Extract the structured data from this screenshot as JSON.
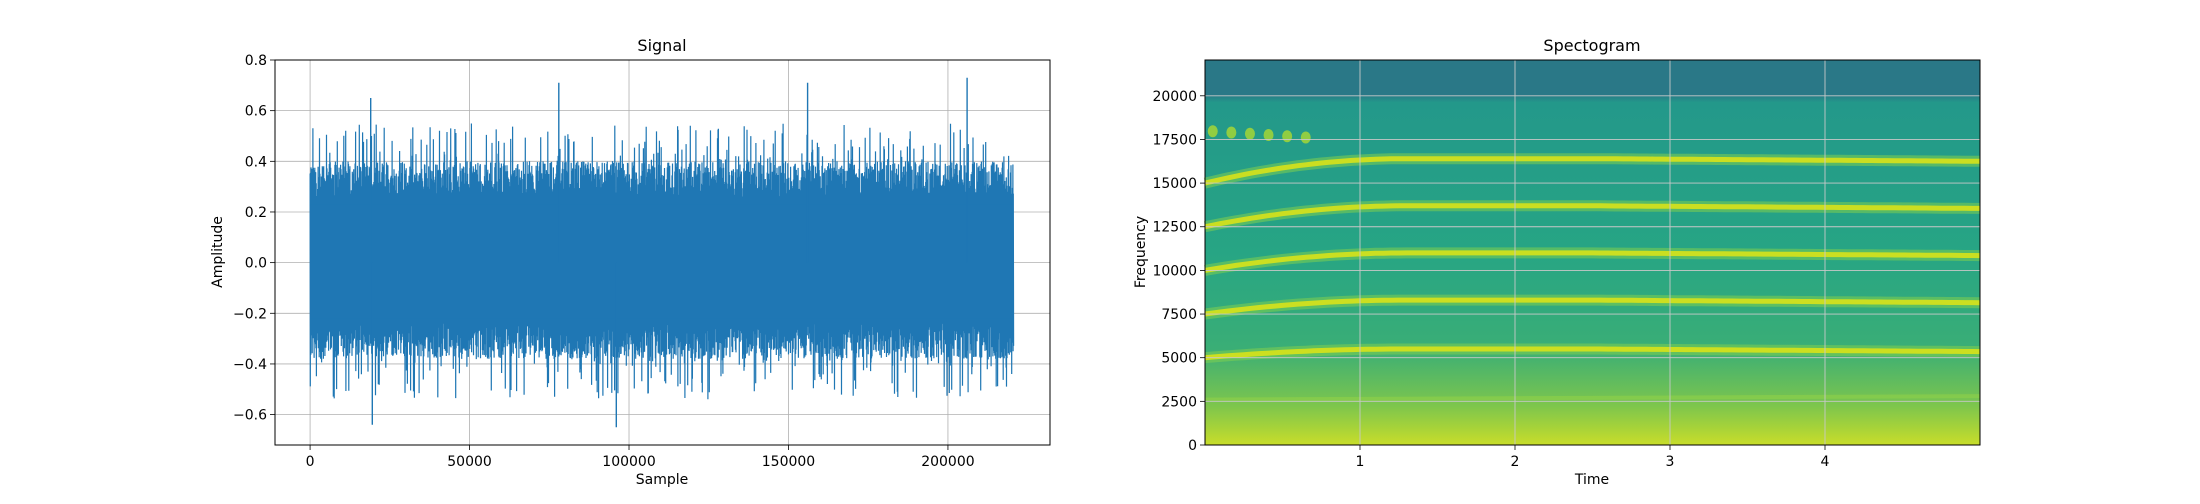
{
  "chart_data": [
    {
      "type": "line",
      "title": "Signal",
      "xlabel": "Sample",
      "ylabel": "Amplitude",
      "xlim": [
        -11000,
        232000
      ],
      "ylim": [
        -0.72,
        0.8
      ],
      "x_ticks": [
        0,
        50000,
        100000,
        150000,
        200000
      ],
      "y_ticks": [
        -0.6,
        -0.4,
        -0.2,
        0.0,
        0.2,
        0.4,
        0.6,
        0.8
      ],
      "y_tick_labels": [
        "−0.6",
        "−0.4",
        "−0.2",
        "0.0",
        "0.2",
        "0.4",
        "0.6",
        "0.8"
      ],
      "grid": true,
      "sample_count": 220500,
      "approx_range": [
        -0.65,
        0.73
      ],
      "notable_peaks": [
        {
          "x": 19000,
          "y": 0.65
        },
        {
          "x": 78000,
          "y": 0.71
        },
        {
          "x": 156000,
          "y": 0.71
        },
        {
          "x": 206000,
          "y": 0.73
        },
        {
          "x": 19500,
          "y": -0.64
        },
        {
          "x": 96000,
          "y": -0.65
        }
      ],
      "series": [
        {
          "color": "#1f77b4"
        }
      ]
    },
    {
      "type": "heatmap",
      "title": "Spectogram",
      "xlabel": "Time",
      "ylabel": "Frequency",
      "xlim": [
        0,
        5
      ],
      "ylim": [
        0,
        22050
      ],
      "x_ticks": [
        1,
        2,
        3,
        4
      ],
      "y_ticks": [
        0,
        2500,
        5000,
        7500,
        10000,
        12500,
        15000,
        17500,
        20000
      ],
      "grid": true,
      "colormap": "viridis",
      "cutoff_frequency": 17500,
      "harmonic_bands": [
        {
          "f_start": 5000,
          "f_end": 5500
        },
        {
          "f_start": 7500,
          "f_end": 8300
        },
        {
          "f_start": 10000,
          "f_end": 11000
        },
        {
          "f_start": 12500,
          "f_end": 13700
        },
        {
          "f_start": 15000,
          "f_end": 16400
        }
      ],
      "low_band": {
        "f_start": 2600,
        "f_end": 2800
      },
      "early_burst": {
        "t_start": 0,
        "t_end": 0.65,
        "f": 18000
      }
    }
  ]
}
